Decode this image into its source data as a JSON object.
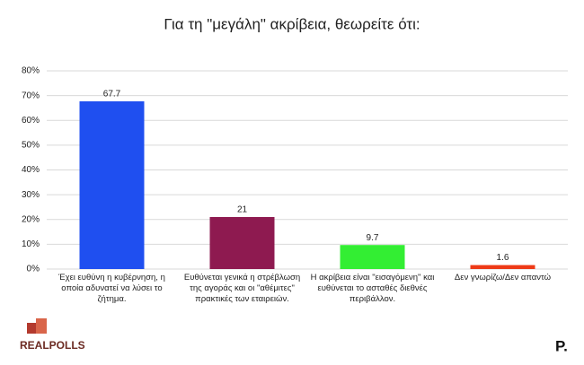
{
  "chart_data": {
    "type": "bar",
    "title": "Για τη \"μεγάλη\" ακρίβεια, θεωρείτε ότι:",
    "categories": [
      "Έχει ευθύνη  η κυβέρνηση,  η οποία αδυνατεί να λύσει το ζήτημα.",
      "Ευθύνεται γενικά η στρέβλωση της αγοράς και οι \"αθέμιτες\" πρακτικές των εταιρειών.",
      "Η ακρίβεια είναι \"εισαγόμενη\"  και ευθύνεται  το ασταθές  διεθνές περιβάλλον.",
      "Δεν γνωρίζω/Δεν απαντώ"
    ],
    "values": [
      67.7,
      21,
      9.7,
      1.6
    ],
    "colors": [
      "#1f4ff0",
      "#8e1a50",
      "#33ee33",
      "#ee3a17"
    ],
    "ylim": [
      0,
      80
    ],
    "yticks": [
      {
        "value": 0,
        "label": "0%"
      },
      {
        "value": 10,
        "label": "10%"
      },
      {
        "value": 20,
        "label": "20%"
      },
      {
        "value": 30,
        "label": "30%"
      },
      {
        "value": 40,
        "label": "40%"
      },
      {
        "value": 50,
        "label": "50%"
      },
      {
        "value": 60,
        "label": "60%"
      },
      {
        "value": 70,
        "label": "70%"
      },
      {
        "value": 80,
        "label": "80%"
      }
    ],
    "grid": true
  },
  "branding": {
    "left": "REALPOLLS",
    "right": "P."
  }
}
